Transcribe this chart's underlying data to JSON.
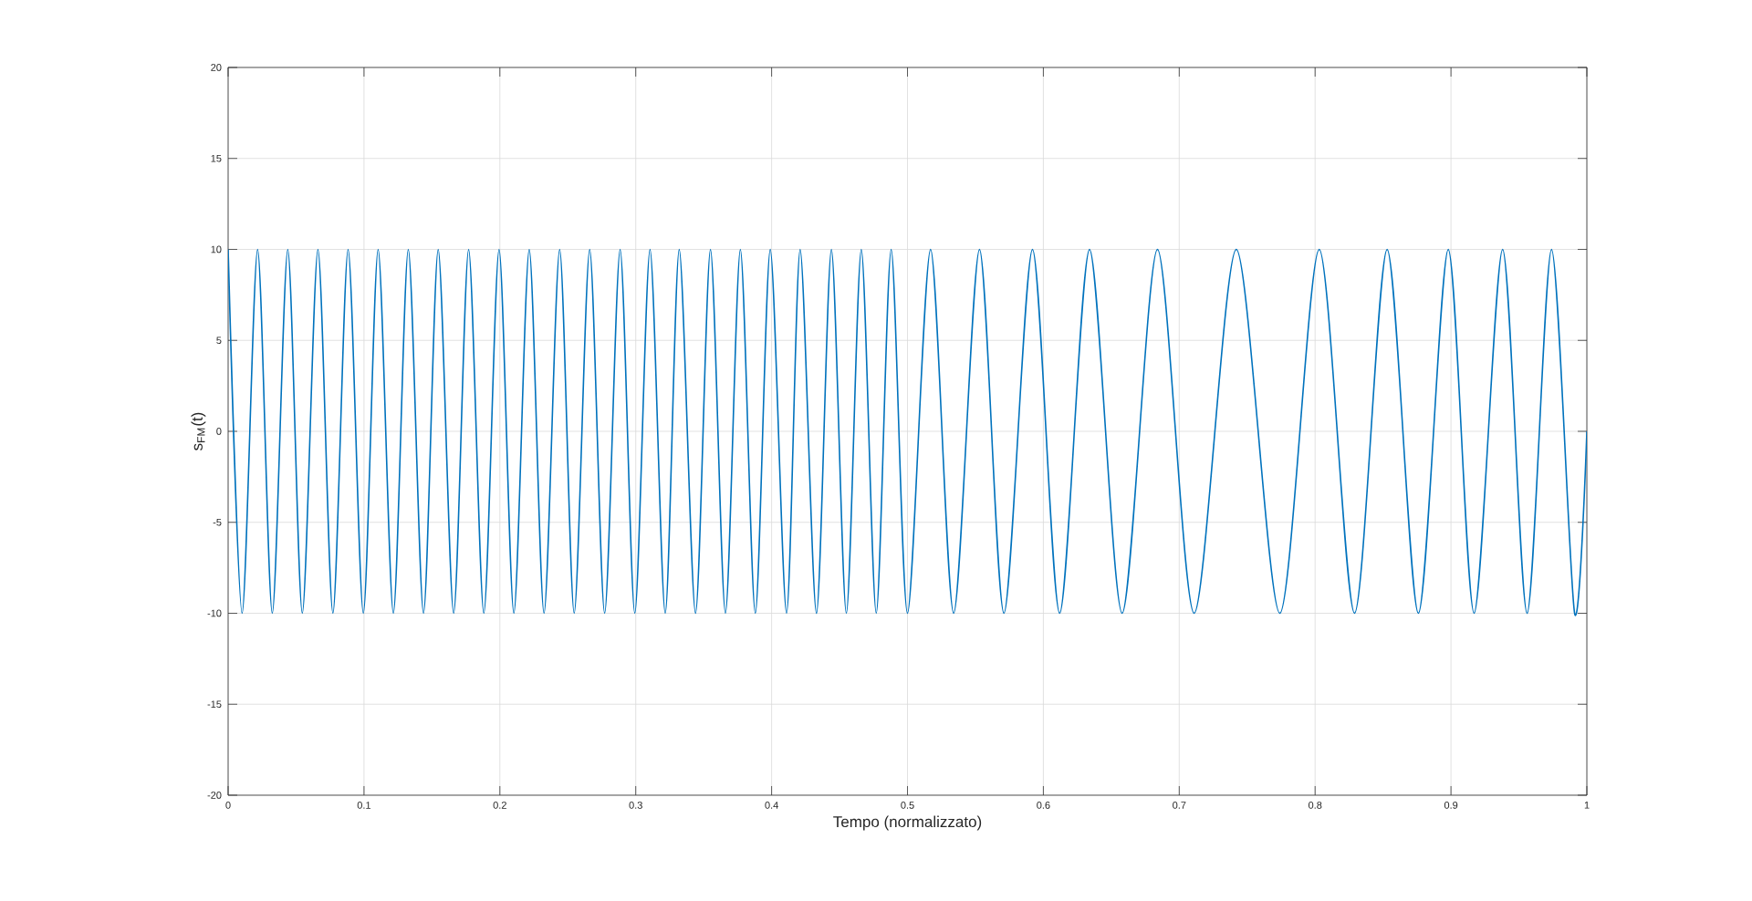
{
  "chart_data": {
    "type": "line",
    "xlabel": "Tempo (normalizzato)",
    "ylabel": "s$_{FM}$(t)",
    "x": [
      0,
      0.0103,
      0.0217,
      0.0325,
      0.0439,
      0.0546,
      0.0661,
      0.0771,
      0.0883,
      0.0995,
      0.1104,
      0.1216,
      0.1326,
      0.1438,
      0.1546,
      0.166,
      0.177,
      0.1882,
      0.1994,
      0.2103,
      0.2216,
      0.2325,
      0.244,
      0.2547,
      0.2661,
      0.2771,
      0.2885,
      0.2993,
      0.3105,
      0.3217,
      0.332,
      0.344,
      0.355,
      0.366,
      0.377,
      0.388,
      0.399,
      0.411,
      0.421,
      0.433,
      0.444,
      0.455,
      0.466,
      0.477,
      0.488,
      0.5,
      0.517,
      0.534,
      0.553,
      0.571,
      0.592,
      0.612,
      0.634,
      0.658,
      0.684,
      0.711,
      0.742,
      0.774,
      0.803,
      0.829,
      0.853,
      0.876,
      0.898,
      0.917,
      0.938,
      0.956,
      0.974,
      0.991,
      1
    ],
    "series": [
      {
        "color": "#0072bd",
        "values": [
          10,
          -10,
          10,
          -10,
          10,
          -10,
          10,
          -10,
          10,
          -10,
          10,
          -10,
          10,
          -10,
          10,
          -10,
          10,
          -10,
          10,
          -10,
          10,
          -10,
          10,
          -10,
          10,
          -10,
          10,
          -10,
          10,
          -10,
          10,
          -10,
          10,
          -10,
          10,
          -10,
          10,
          -10,
          10,
          -10,
          10,
          -10,
          10,
          -10,
          10,
          -10,
          10,
          -10,
          10,
          -10,
          10,
          -10,
          10,
          -10,
          10,
          -10,
          10,
          -10,
          10,
          -10,
          10,
          -10,
          10,
          -10,
          10,
          -10,
          10,
          -10,
          0
        ]
      }
    ],
    "xlim": [
      0,
      1
    ],
    "ylim": [
      -20,
      20
    ],
    "xticks": [
      0,
      0.1,
      0.2,
      0.3,
      0.4,
      0.5,
      0.6,
      0.7,
      0.8,
      0.9,
      1
    ],
    "yticks": [
      -20,
      -15,
      -10,
      -5,
      0,
      5,
      10,
      15,
      20
    ],
    "grid": true,
    "line_style": "solid"
  }
}
